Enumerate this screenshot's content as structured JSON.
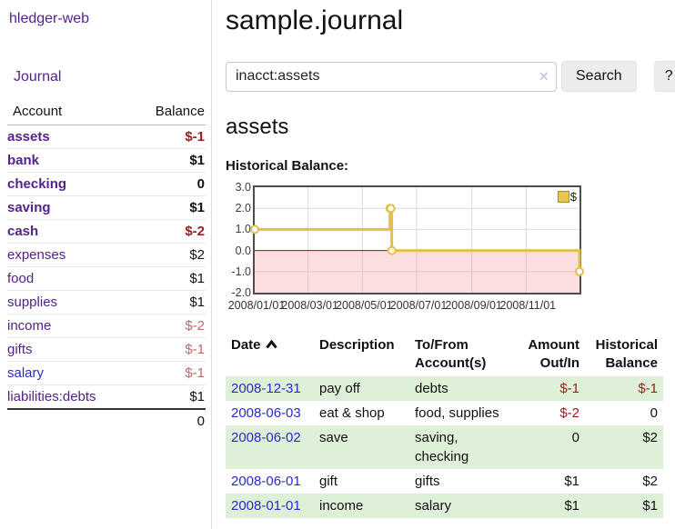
{
  "app": {
    "title": "hledger-web"
  },
  "sidebar": {
    "journal_link": "Journal",
    "accounts_table": {
      "headers": {
        "account": "Account",
        "balance": "Balance"
      },
      "rows": [
        {
          "name": "assets",
          "balance": "$-1",
          "depth": 0,
          "bold": true,
          "tone": "strong"
        },
        {
          "name": "bank",
          "balance": "$1",
          "depth": 1,
          "bold": true
        },
        {
          "name": "checking",
          "balance": "0",
          "depth": 2,
          "bold": true
        },
        {
          "name": "saving",
          "balance": "$1",
          "depth": 2,
          "bold": true
        },
        {
          "name": "cash",
          "balance": "$-2",
          "depth": 1,
          "bold": true,
          "tone": "strong"
        },
        {
          "name": "expenses",
          "balance": "$2",
          "depth": 0
        },
        {
          "name": "food",
          "balance": "$1",
          "depth": 1
        },
        {
          "name": "supplies",
          "balance": "$1",
          "depth": 1
        },
        {
          "name": "income",
          "balance": "$-2",
          "depth": 0,
          "tone": "muted"
        },
        {
          "name": "gifts",
          "balance": "$-1",
          "depth": 1,
          "tone": "muted"
        },
        {
          "name": "salary",
          "balance": "$-1",
          "depth": 1,
          "tone": "muted",
          "blue": true
        },
        {
          "name": "liabilities:debts",
          "balance": "$1",
          "depth": 0
        }
      ],
      "total": "0"
    }
  },
  "main": {
    "title": "sample.journal",
    "search": {
      "value": "inacct:assets",
      "clear_icon": "×",
      "button_label": "Search",
      "help_label": "?"
    },
    "account_heading": "assets",
    "chart_heading": "Historical Balance:"
  },
  "chart_data": {
    "type": "line",
    "step": true,
    "title": "Historical Balance:",
    "x_start": "2008-01-01",
    "x_end": "2008-12-31",
    "ylim": [
      -2,
      3
    ],
    "yticks": [
      3.0,
      2.0,
      1.0,
      0.0,
      -1.0,
      -2.0
    ],
    "xticks": [
      "2008/01/01",
      "2008/03/01",
      "2008/05/01",
      "2008/07/01",
      "2008/09/01",
      "2008/11/01"
    ],
    "series": [
      {
        "name": "$",
        "color": "#e4bf4b",
        "points": [
          [
            "2008-01-01",
            1
          ],
          [
            "2008-06-01",
            2
          ],
          [
            "2008-06-02",
            2
          ],
          [
            "2008-06-03",
            0
          ],
          [
            "2008-12-31",
            -1
          ]
        ]
      }
    ],
    "legend": {
      "label": "$",
      "position": "top-right",
      "swatch_fill": "#e9c74f",
      "swatch_border": "#ab8b2b"
    },
    "grid_color": "#d9d9d9",
    "negative_fill": "rgba(245,160,160,0.35)",
    "zero_line_color": "#8b1414",
    "border_color": "#4d4d4d"
  },
  "register_table": {
    "headers": {
      "date": "Date",
      "description": "Description",
      "accounts": "To/From Account(s)",
      "amount": "Amount Out/In",
      "balance": "Historical Balance"
    },
    "sort": "ascending",
    "rows": [
      {
        "date": "2008-12-31",
        "description": "pay off",
        "accounts": "debts",
        "amount": "$-1",
        "balance": "$-1"
      },
      {
        "date": "2008-06-03",
        "description": "eat & shop",
        "accounts": "food, supplies",
        "amount": "$-2",
        "balance": "0"
      },
      {
        "date": "2008-06-02",
        "description": "save",
        "accounts": "saving, checking",
        "amount": "0",
        "balance": "$2"
      },
      {
        "date": "2008-06-01",
        "description": "gift",
        "accounts": "gifts",
        "amount": "$1",
        "balance": "$2"
      },
      {
        "date": "2008-01-01",
        "description": "income",
        "accounts": "salary",
        "amount": "$1",
        "balance": "$1"
      }
    ]
  },
  "colors": {
    "link_purple": "#55228b",
    "link_blue": "#2a2acc",
    "negative_strong": "#a11d1d",
    "negative_muted": "#c1686b",
    "row_stripe_green": "#dff0d8",
    "chart_gold": "#e4bf4b"
  }
}
